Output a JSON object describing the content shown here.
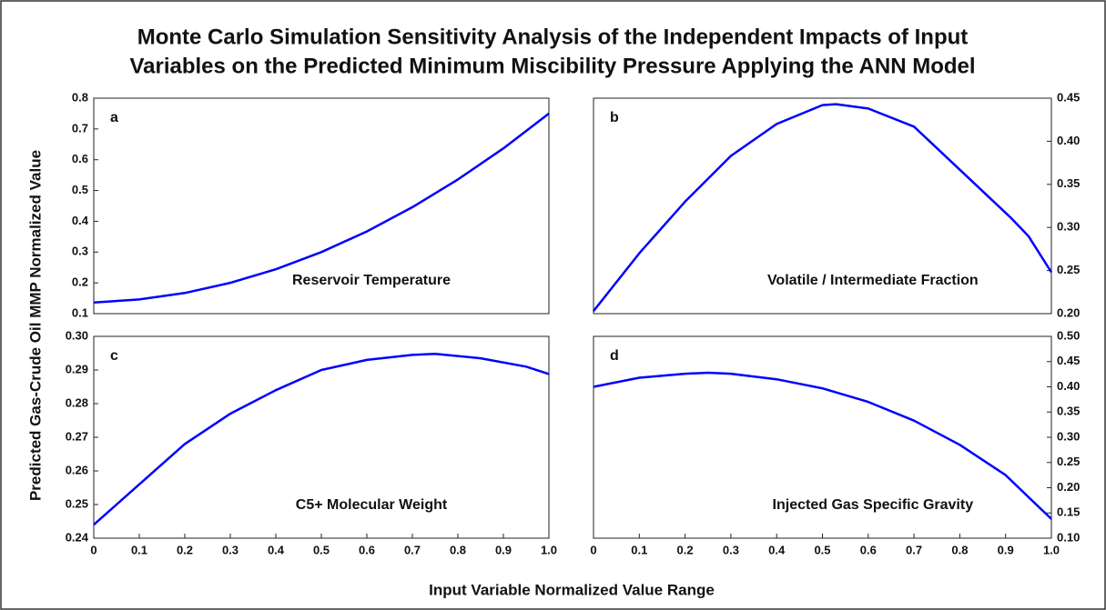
{
  "title": [
    "Monte Carlo Simulation Sensitivity Analysis of the Independent Impacts of Input",
    "Variables on the Predicted Minimum Miscibility Pressure Applying the ANN Model"
  ],
  "ylabel": "Predicted Gas-Crude Oil MMP Normalized Value",
  "xlabel": "Input Variable Normalized Value Range",
  "chart_data": [
    {
      "type": "line",
      "label": "a",
      "annotation": "Reservoir Temperature",
      "yaxis": "left",
      "color": "#0000ff",
      "x": [
        0,
        0.1,
        0.2,
        0.3,
        0.4,
        0.5,
        0.6,
        0.7,
        0.8,
        0.9,
        1.0
      ],
      "values": [
        0.136,
        0.146,
        0.167,
        0.2,
        0.244,
        0.3,
        0.367,
        0.446,
        0.536,
        0.637,
        0.75
      ],
      "xlim": [
        0,
        1
      ],
      "ylim": [
        0.1,
        0.8
      ],
      "yticks": [
        0.1,
        0.2,
        0.3,
        0.4,
        0.5,
        0.6,
        0.7,
        0.8
      ]
    },
    {
      "type": "line",
      "label": "b",
      "annotation": "Volatile / Intermediate Fraction",
      "yaxis": "right",
      "color": "#0000ff",
      "x": [
        0,
        0.1,
        0.2,
        0.3,
        0.4,
        0.5,
        0.53,
        0.6,
        0.7,
        0.91,
        0.95,
        1.0
      ],
      "values": [
        0.203,
        0.27,
        0.33,
        0.383,
        0.42,
        0.442,
        0.443,
        0.438,
        0.417,
        0.312,
        0.29,
        0.248
      ],
      "xlim": [
        0,
        1
      ],
      "ylim": [
        0.2,
        0.45
      ],
      "yticks": [
        {
          "value": 0.2,
          "label": "0.20"
        },
        0.25,
        {
          "value": 0.3,
          "label": "0.30"
        },
        0.35,
        {
          "value": 0.4,
          "label": "0.40"
        },
        0.45
      ]
    },
    {
      "type": "line",
      "label": "c",
      "annotation": "C5+ Molecular Weight",
      "yaxis": "left",
      "color": "#0000ff",
      "x": [
        0,
        0.1,
        0.2,
        0.3,
        0.4,
        0.5,
        0.6,
        0.7,
        0.75,
        0.85,
        0.95,
        1.0
      ],
      "values": [
        0.244,
        0.256,
        0.268,
        0.277,
        0.284,
        0.29,
        0.293,
        0.2945,
        0.2948,
        0.2935,
        0.291,
        0.2888
      ],
      "xlim": [
        0,
        1
      ],
      "ylim": [
        0.24,
        0.3
      ],
      "yticks": [
        0.24,
        0.25,
        0.26,
        0.27,
        0.28,
        0.29,
        {
          "value": 0.3,
          "label": "0.30"
        }
      ],
      "xticks": [
        0,
        0.1,
        0.2,
        0.3,
        0.4,
        0.5,
        0.6,
        0.7,
        0.8,
        0.9,
        {
          "value": 1,
          "label": "1.0"
        }
      ]
    },
    {
      "type": "line",
      "label": "d",
      "annotation": "Injected Gas Specific Gravity",
      "yaxis": "right",
      "color": "#0000ff",
      "x": [
        0,
        0.1,
        0.2,
        0.25,
        0.3,
        0.4,
        0.5,
        0.6,
        0.7,
        0.8,
        0.9,
        1.0
      ],
      "values": [
        0.4,
        0.418,
        0.426,
        0.428,
        0.426,
        0.415,
        0.397,
        0.37,
        0.333,
        0.285,
        0.225,
        0.138
      ],
      "xlim": [
        0,
        1
      ],
      "ylim": [
        0.1,
        0.5
      ],
      "yticks": [
        {
          "value": 0.1,
          "label": "0.10"
        },
        0.15,
        {
          "value": 0.2,
          "label": "0.20"
        },
        0.25,
        {
          "value": 0.3,
          "label": "0.30"
        },
        0.35,
        {
          "value": 0.4,
          "label": "0.40"
        },
        0.45,
        {
          "value": 0.5,
          "label": "0.50"
        }
      ],
      "xticks": [
        0,
        0.1,
        0.2,
        0.3,
        0.4,
        0.5,
        0.6,
        0.7,
        0.8,
        0.9,
        {
          "value": 1,
          "label": "1.0"
        }
      ]
    }
  ]
}
